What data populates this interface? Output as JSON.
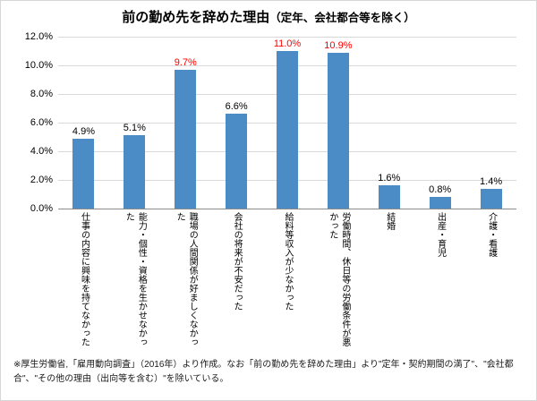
{
  "title": {
    "main": "前の勤め先を辞めた理由",
    "sub": "（定年、会社都合等を除く）"
  },
  "chart_data": {
    "type": "bar",
    "categories": [
      "仕事の内容に興味を持てなかった",
      "能力・個性・資格を生かせなかった",
      "職場の人間関係が好ましくなかった",
      "会社の将来が不安だった",
      "給料等収入が少なかった",
      "労働時間、休日等の労働条件が悪かった",
      "結婚",
      "出産・育児",
      "介護・看護"
    ],
    "values": [
      4.9,
      5.1,
      9.7,
      6.6,
      11.0,
      10.9,
      1.6,
      0.8,
      1.4
    ],
    "value_labels": [
      "4.9%",
      "5.1%",
      "9.7%",
      "6.6%",
      "11.0%",
      "10.9%",
      "1.6%",
      "0.8%",
      "1.4%"
    ],
    "label_colors": [
      "#000000",
      "#000000",
      "#FF0000",
      "#000000",
      "#FF0000",
      "#FF0000",
      "#000000",
      "#000000",
      "#000000"
    ],
    "yticks": [
      "0.0%",
      "2.0%",
      "4.0%",
      "6.0%",
      "8.0%",
      "10.0%",
      "12.0%"
    ],
    "ylim": [
      0,
      12
    ],
    "ytick_step": 2,
    "bar_color": "#4B8BC6",
    "highlight_color": "#FF0000",
    "grid": true,
    "legend": "none",
    "xlabel": "",
    "ylabel": ""
  },
  "footnote": "※厚生労働省,「雇用動向調査」（2016年）より作成。なお「前の勤め先を辞めた理由」より\"定年・契約期間の満了\"、\"会社都合\"、\"その他の理由（出向等を含む）\"を除いている。"
}
